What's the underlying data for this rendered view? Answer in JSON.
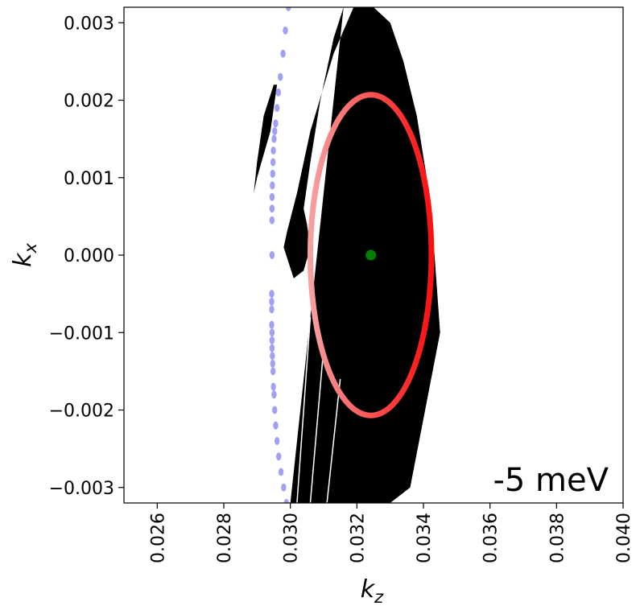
{
  "chart_data": {
    "type": "scatter",
    "title": "",
    "xlabel": "k",
    "xlabel_sub": "z",
    "ylabel": "k",
    "ylabel_sub": "x",
    "annotation": "-5 meV",
    "annotation_position": "bottom-right",
    "xlim": [
      0.025,
      0.04
    ],
    "ylim": [
      -0.0032,
      0.0032
    ],
    "xticks": [
      0.026,
      0.028,
      0.03,
      0.032,
      0.034,
      0.036,
      0.038,
      0.04
    ],
    "xtick_labels": [
      "0.026",
      "0.028",
      "0.030",
      "0.032",
      "0.034",
      "0.036",
      "0.038",
      "0.040"
    ],
    "yticks": [
      0.003,
      0.002,
      0.001,
      0.0,
      -0.001,
      -0.002,
      -0.003
    ],
    "ytick_labels": [
      "0.003",
      "0.002",
      "0.001",
      "0.000",
      "−0.001",
      "−0.002",
      "−0.003"
    ],
    "grid": false,
    "colors": {
      "band": "#000000",
      "ring_inner": "#f79090",
      "ring_outer": "#ff1a1a",
      "blue": "#a0a0f5",
      "center": "#008000"
    },
    "series": [
      {
        "kind": "ellipse",
        "center": [
          0.03242,
          0.0
        ],
        "semi_axis_kz": 0.00182,
        "semi_axis_kx": 0.00207
      },
      {
        "kind": "center-point",
        "point": [
          0.03242,
          0.0
        ]
      },
      {
        "kind": "blue-points",
        "x": [
          0.02994,
          0.02985,
          0.02978,
          0.0297,
          0.02964,
          0.0296,
          0.02956,
          0.02953,
          0.02951,
          0.02949,
          0.02948,
          0.02947,
          0.02946,
          0.02945,
          0.02945,
          0.02945,
          0.02945,
          0.02944,
          0.02944,
          0.02944,
          0.02944,
          0.02945,
          0.02945,
          0.02945,
          0.02946,
          0.02947,
          0.02948,
          0.02949,
          0.02951,
          0.02953,
          0.02956,
          0.0296,
          0.02965,
          0.02972,
          0.0298,
          0.02988
        ],
        "y": [
          0.0032,
          0.0029,
          0.0026,
          0.0023,
          0.0021,
          0.0019,
          0.0017,
          0.0016,
          0.0015,
          0.00135,
          0.0012,
          0.00105,
          0.0009,
          0.00075,
          0.0006,
          0.00045,
          0.0,
          -0.0005,
          -0.0006,
          -0.0007,
          -0.0009,
          -0.001,
          -0.0011,
          -0.0012,
          -0.0013,
          -0.0014,
          -0.0015,
          -0.0017,
          -0.0018,
          -0.002,
          -0.0022,
          -0.0024,
          -0.0026,
          -0.0028,
          -0.003,
          -0.0032
        ]
      },
      {
        "kind": "black-band",
        "regions": [
          {
            "x": [
              0.03,
              0.0303,
              0.031,
              0.0322,
              0.033,
              0.0336,
              0.0345,
              0.0343,
              0.0341,
              0.0338,
              0.0334,
              0.033,
              0.0325,
              0.0319,
              0.0313,
              0.0306,
              0.0302,
              0.0299,
              0.0298,
              0.0301,
              0.0304,
              0.0306,
              0.0305,
              0.0304,
              0.0306,
              0.0309,
              0.0313,
              0.0316
            ],
            "y": [
              -0.0032,
              -0.0032,
              -0.0032,
              -0.0032,
              -0.0032,
              -0.003,
              -0.001,
              0.0002,
              0.001,
              0.0018,
              0.0025,
              0.003,
              0.0032,
              0.0032,
              0.0026,
              0.0016,
              0.0008,
              0.0003,
              0.0001,
              -0.0003,
              -0.0002,
              0.0001,
              0.0004,
              0.0006,
              0.0012,
              0.002,
              0.0028,
              0.0032
            ]
          },
          {
            "x": [
              0.0296,
              0.0295,
              0.0294,
              0.0292,
              0.029,
              0.0289,
              0.029,
              0.0292,
              0.0295
            ],
            "y": [
              0.0022,
              0.0019,
              0.0016,
              0.0013,
              0.001,
              0.0008,
              0.0012,
              0.0018,
              0.0022
            ]
          }
        ]
      }
    ]
  }
}
